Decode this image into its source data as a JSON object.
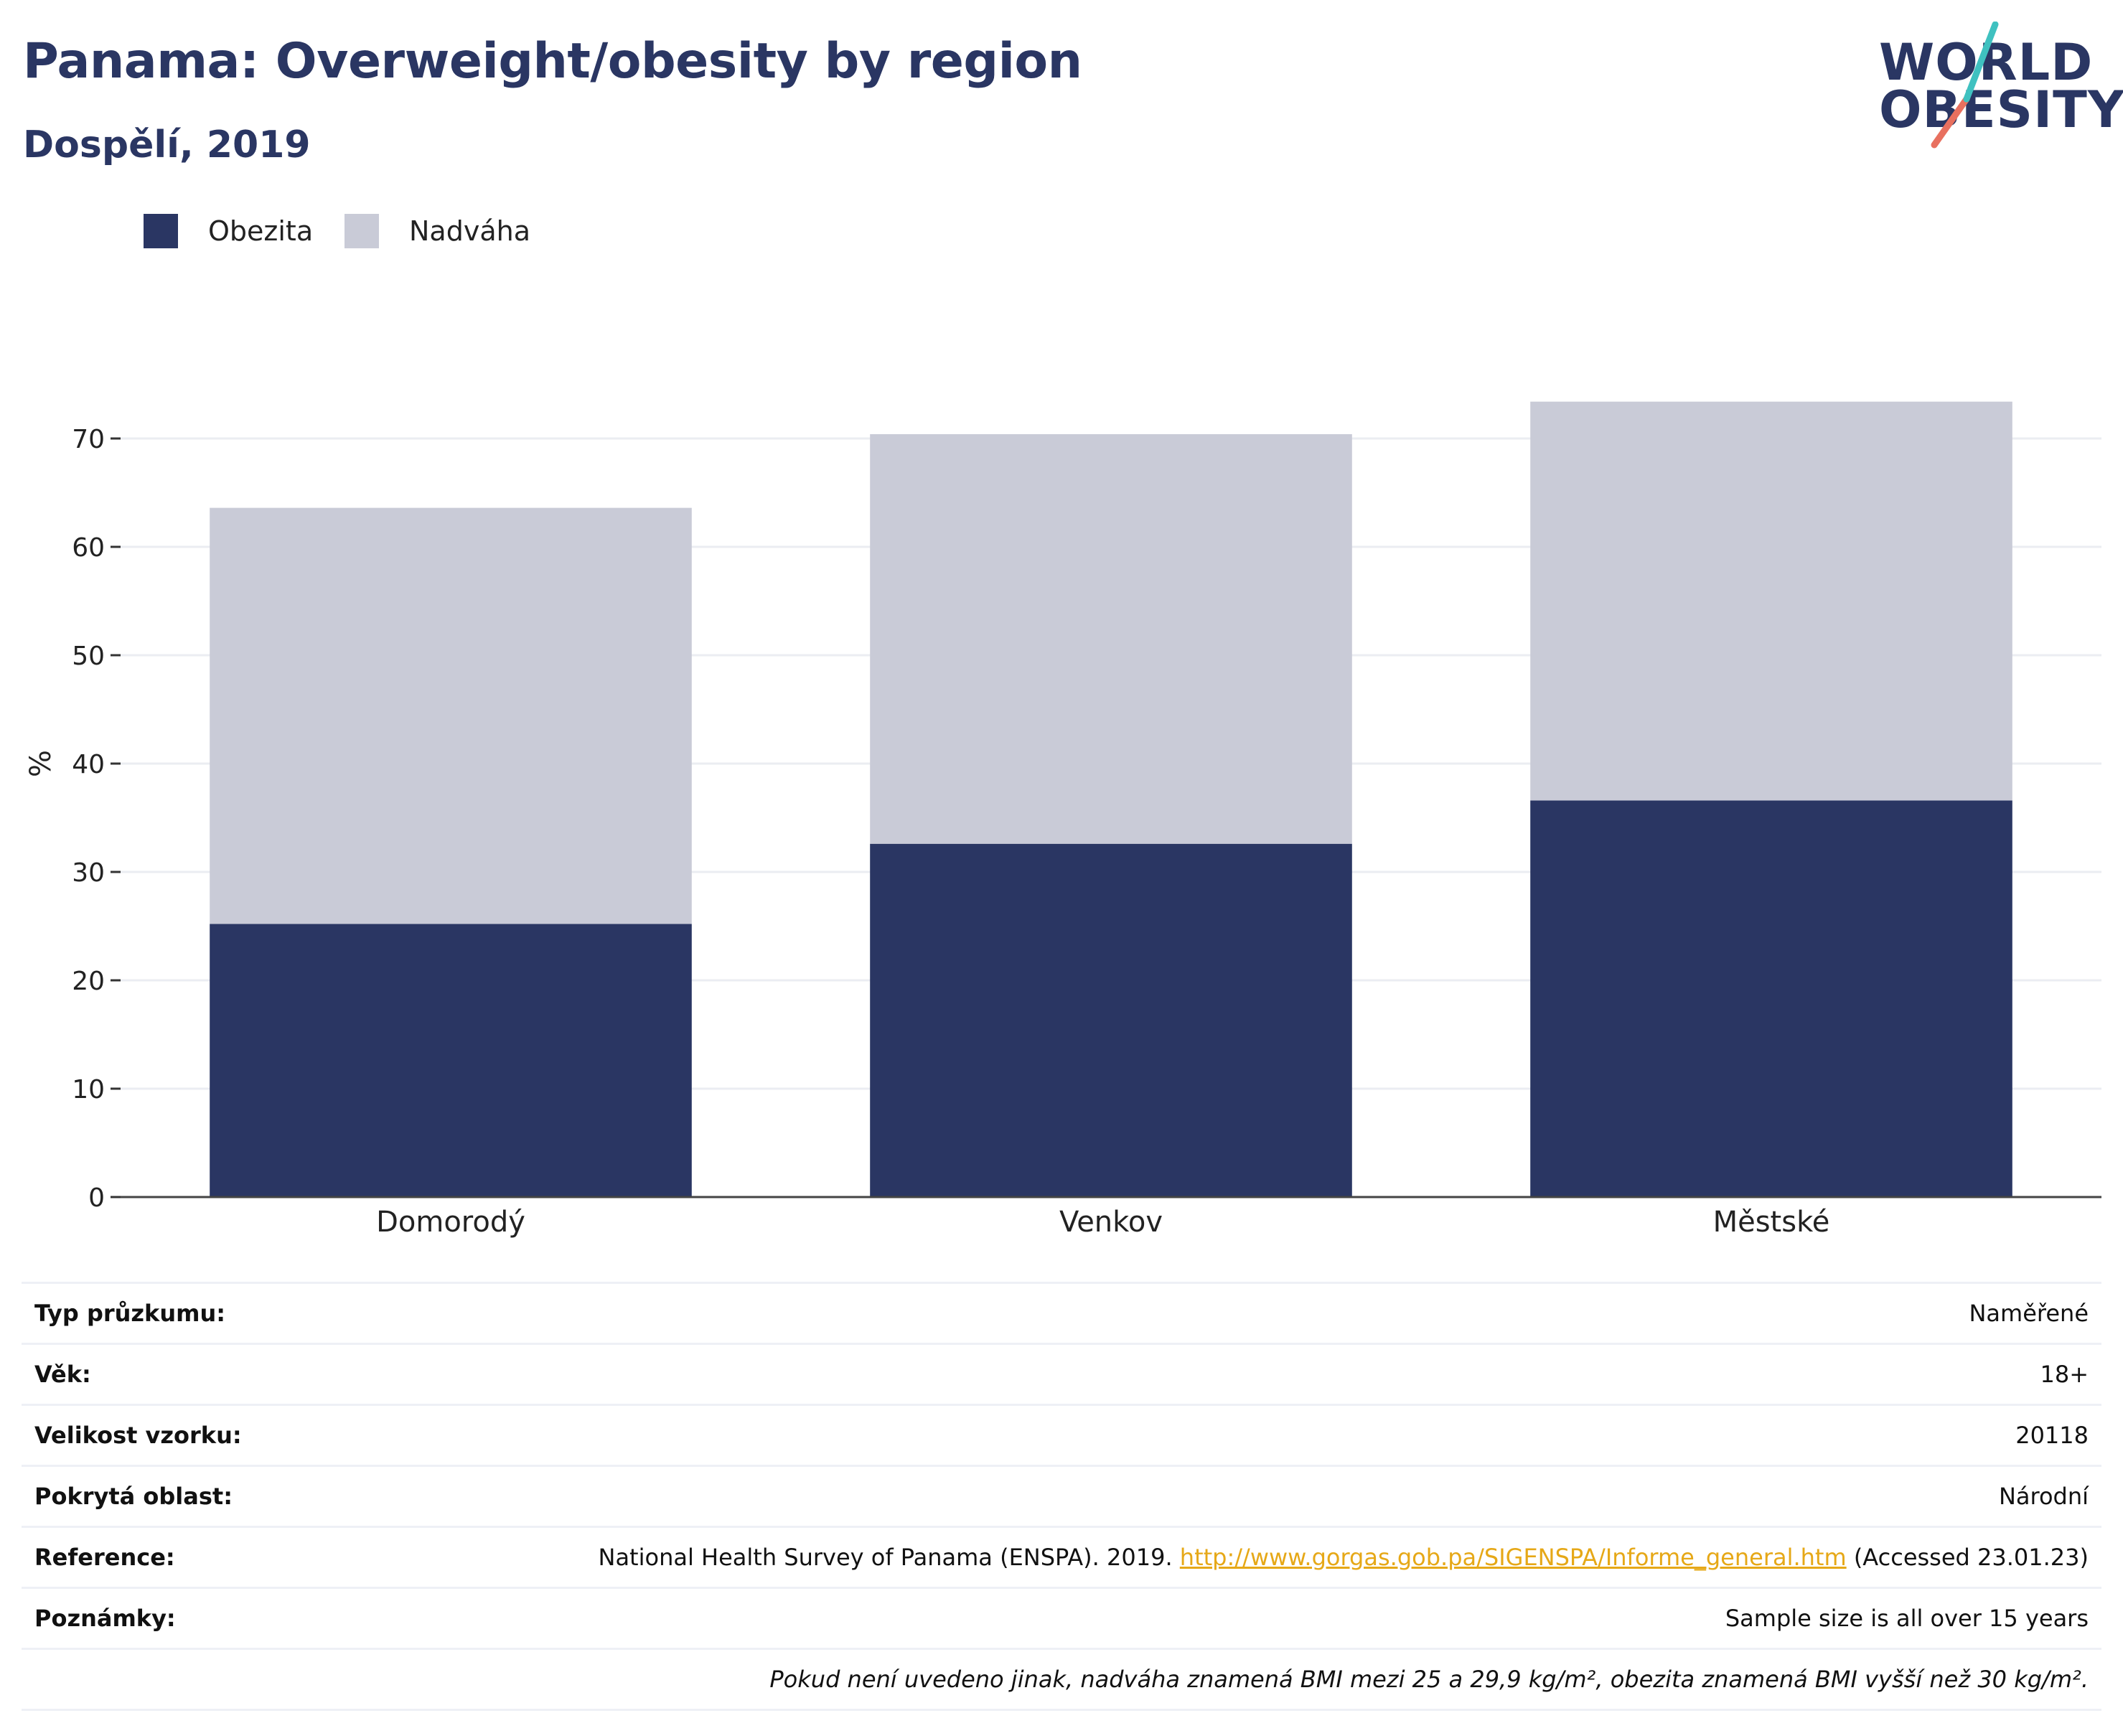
{
  "header": {
    "title": "Panama: Overweight/obesity by region",
    "subtitle": "Dospělí, 2019"
  },
  "logo": {
    "line1": "WORLD",
    "line2": "OBESITY",
    "slash_colors": [
      "#3fc1c0",
      "#e8705f"
    ]
  },
  "colors": {
    "obesity": "#2a3663",
    "overweight": "#c9cbd7",
    "title": "#2a3663",
    "link": "#e6a817"
  },
  "legend": {
    "items": [
      {
        "label": "Obezita",
        "color": "#2a3663"
      },
      {
        "label": "Nadváha",
        "color": "#c9cbd7"
      }
    ]
  },
  "chart_data": {
    "type": "bar",
    "stacked": true,
    "categories": [
      "Domorodý",
      "Venkov",
      "Městské"
    ],
    "series": [
      {
        "name": "Obezita",
        "values": [
          25.2,
          32.6,
          36.6
        ]
      },
      {
        "name": "Nadváha",
        "values": [
          38.4,
          37.8,
          36.8
        ]
      }
    ],
    "ylabel": "%",
    "ylim": [
      0,
      75
    ],
    "yticks": [
      0,
      10,
      20,
      30,
      40,
      50,
      60,
      70
    ],
    "grid": true,
    "legend_position": "top-left"
  },
  "info": {
    "rows": [
      {
        "key": "Typ průzkumu:",
        "value": "Naměřené"
      },
      {
        "key": "Věk:",
        "value": "18+"
      },
      {
        "key": "Velikost vzorku:",
        "value": "20118"
      },
      {
        "key": "Pokrytá oblast:",
        "value": "Národní"
      }
    ],
    "reference": {
      "key": "Reference:",
      "text_before": "National Health Survey of Panama (ENSPA). 2019. ",
      "link": "http://www.gorgas.gob.pa/SIGENSPA/Informe_general.htm",
      "text_after": " (Accessed 23.01.23)"
    },
    "notes": {
      "key": "Poznámky:",
      "value": "Sample size is all over 15 years"
    },
    "footnote": "Pokud není uvedeno jinak, nadváha znamená BMI mezi 25 a 29,9 kg/m², obezita znamená BMI vyšší než 30 kg/m²."
  }
}
